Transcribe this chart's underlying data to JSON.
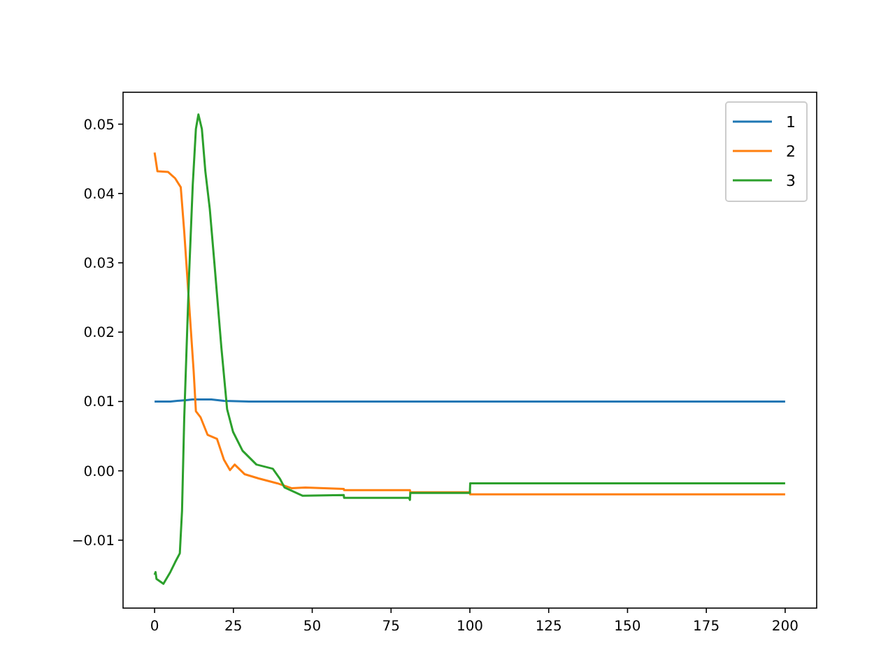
{
  "chart_data": {
    "type": "line",
    "xlim": [
      -10,
      210
    ],
    "ylim": [
      -0.0198,
      0.0546
    ],
    "xticks": [
      0,
      25,
      50,
      75,
      100,
      125,
      150,
      175,
      200
    ],
    "yticks": [
      {
        "value": -0.01,
        "label": "−0.01"
      },
      {
        "value": 0,
        "label": "0.00"
      },
      {
        "value": 0.01,
        "label": "0.01"
      },
      {
        "value": 0.02,
        "label": "0.02"
      },
      {
        "value": 0.03,
        "label": "0.03"
      },
      {
        "value": 0.04,
        "label": "0.04"
      },
      {
        "value": 0.05,
        "label": "0.05"
      }
    ],
    "legend": "top right",
    "grid": false,
    "series": [
      {
        "name": "1",
        "color": "#1f77b4",
        "x": [
          0,
          5,
          10,
          12,
          15,
          18,
          22,
          30,
          50,
          100,
          200
        ],
        "values": [
          0.01,
          0.01,
          0.0102,
          0.0103,
          0.0103,
          0.0103,
          0.0101,
          0.01,
          0.01,
          0.01,
          0.01
        ]
      },
      {
        "name": "2",
        "color": "#ff7f0e",
        "x": [
          0,
          0.9,
          4.3,
          6.5,
          8.3,
          9.4,
          10.9,
          12.4,
          13.1,
          14.6,
          16.8,
          19.8,
          22,
          23.9,
          25.4,
          28.6,
          33,
          38.9,
          43.4,
          47.8,
          60,
          60.1,
          81,
          81.1,
          100,
          100.1,
          200
        ],
        "values": [
          0.0459,
          0.0432,
          0.0431,
          0.0422,
          0.0409,
          0.0345,
          0.0244,
          0.0143,
          0.0086,
          0.0077,
          0.0052,
          0.0046,
          0.0016,
          0.0001,
          0.0009,
          -0.0005,
          -0.0011,
          -0.0018,
          -0.0025,
          -0.0024,
          -0.0026,
          -0.0028,
          -0.0028,
          -0.0031,
          -0.0031,
          -0.0034,
          -0.0034
        ]
      },
      {
        "name": "3",
        "color": "#2ca02c",
        "x": [
          0,
          0.3,
          0.6,
          2.8,
          5,
          6.5,
          8,
          8.7,
          9.4,
          10.9,
          12.1,
          13.1,
          13.9,
          15,
          16.1,
          17.5,
          19,
          21.2,
          23,
          24.9,
          27.9,
          32.3,
          37.5,
          39.7,
          41.2,
          47,
          60,
          60.1,
          80.7,
          81,
          81.1,
          100,
          100.1,
          200
        ],
        "values": [
          -0.015,
          -0.0146,
          -0.0156,
          -0.0163,
          -0.0146,
          -0.0132,
          -0.0119,
          -0.0058,
          0.0076,
          0.0278,
          0.0412,
          0.0493,
          0.0514,
          0.0493,
          0.0432,
          0.0378,
          0.0298,
          0.0177,
          0.0089,
          0.0056,
          0.0029,
          0.0009,
          0.0003,
          -0.0011,
          -0.0024,
          -0.0036,
          -0.0035,
          -0.0039,
          -0.0039,
          -0.0042,
          -0.0032,
          -0.0032,
          -0.0018,
          -0.0018
        ]
      }
    ]
  }
}
